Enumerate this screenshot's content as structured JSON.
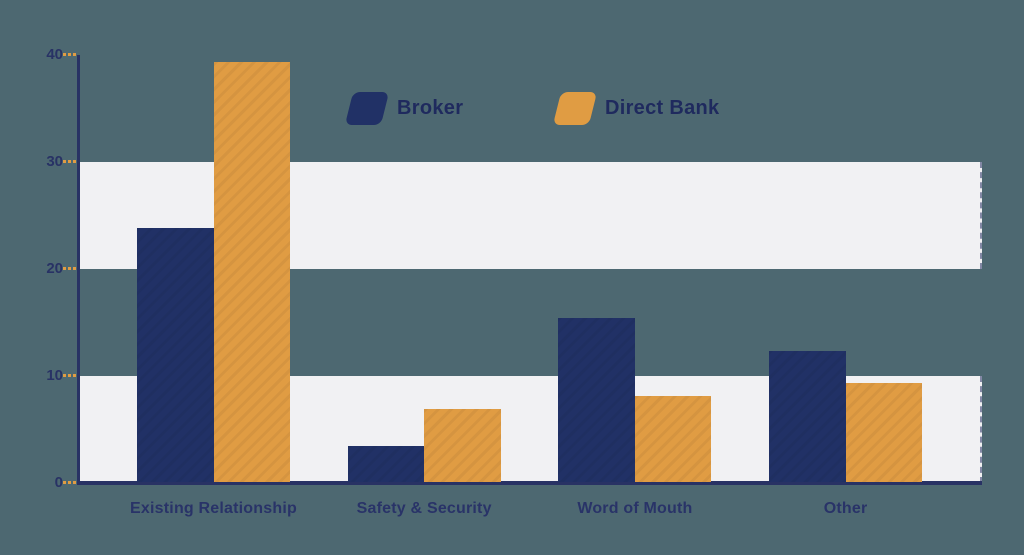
{
  "canvas": {
    "background_color": "#4d6871",
    "band_color": "#f1f1f3"
  },
  "colors": {
    "navy": "#213166",
    "orange": "#e09c43",
    "axis": "#283264",
    "tick_text": "#283265",
    "tick_dash": "#e09c43",
    "category_text": "#293368",
    "legend_text": "#1f2a5e"
  },
  "legend": {
    "items": [
      {
        "label": "Broker",
        "color": "#213166"
      },
      {
        "label": "Direct Bank",
        "color": "#e09c43"
      }
    ]
  },
  "chart_data": {
    "type": "bar",
    "title": "",
    "xlabel": "",
    "ylabel": "",
    "categories": [
      "Existing Relationship",
      "Safety & Security",
      "Word of Mouth",
      "Other"
    ],
    "series": [
      {
        "name": "Broker",
        "color": "#213166",
        "values": [
          23.8,
          3.4,
          15.4,
          12.3
        ]
      },
      {
        "name": "Direct Bank",
        "color": "#e09c43",
        "values": [
          39.3,
          6.9,
          8.1,
          9.3
        ]
      }
    ],
    "ylim": [
      0,
      40
    ],
    "yticks": [
      0,
      10,
      20,
      30,
      40
    ],
    "bands": [
      [
        0,
        10
      ],
      [
        20,
        30
      ]
    ],
    "grid": false,
    "legend_position": "top-center"
  }
}
